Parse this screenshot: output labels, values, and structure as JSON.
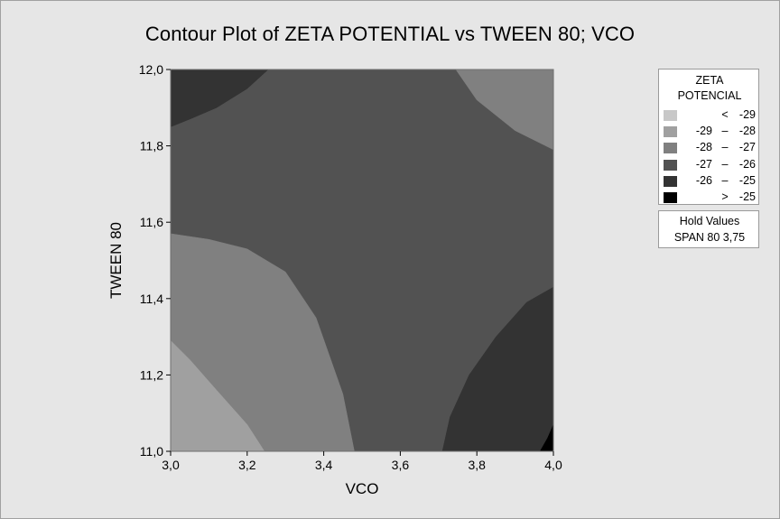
{
  "chart_data": {
    "type": "contour",
    "title": "Contour Plot of ZETA POTENTIAL vs TWEEN 80; VCO",
    "xlabel": "VCO",
    "ylabel": "TWEEN 80",
    "xlim": [
      3.0,
      4.0
    ],
    "ylim": [
      11.0,
      12.0
    ],
    "x_ticks": [
      "3,0",
      "3,2",
      "3,4",
      "3,6",
      "3,8",
      "4,0"
    ],
    "y_ticks": [
      "11,0",
      "11,2",
      "11,4",
      "11,6",
      "11,8",
      "12,0"
    ],
    "legend_title": [
      "ZETA",
      "POTENCIAL"
    ],
    "legend": [
      {
        "lo": "",
        "sep": "<",
        "hi": "-29",
        "color": "#c8c8c8"
      },
      {
        "lo": "-29",
        "sep": "–",
        "hi": "-28",
        "color": "#a0a0a0"
      },
      {
        "lo": "-28",
        "sep": "–",
        "hi": "-27",
        "color": "#808080"
      },
      {
        "lo": "-27",
        "sep": "–",
        "hi": "-26",
        "color": "#525252"
      },
      {
        "lo": "-26",
        "sep": "–",
        "hi": "-25",
        "color": "#333333"
      },
      {
        "lo": "",
        "sep": ">",
        "hi": "-25",
        "color": "#000000"
      }
    ],
    "hold_values": {
      "title": "Hold Values",
      "text": "SPAN 80  3,75"
    },
    "regions": [
      {
        "level": "-27 – -26",
        "color": "#525252",
        "boundary": [
          [
            3.0,
            11.0
          ],
          [
            4.0,
            11.0
          ],
          [
            4.0,
            12.0
          ],
          [
            3.0,
            12.0
          ]
        ]
      },
      {
        "level": "-28 – -27",
        "color": "#808080",
        "boundary": [
          [
            3.0,
            11.0
          ],
          [
            3.48,
            11.0
          ],
          [
            3.45,
            11.15
          ],
          [
            3.38,
            11.35
          ],
          [
            3.3,
            11.47
          ],
          [
            3.2,
            11.53
          ],
          [
            3.1,
            11.555
          ],
          [
            3.0,
            11.57
          ]
        ]
      },
      {
        "level": "-29 – -28",
        "color": "#a0a0a0",
        "boundary": [
          [
            3.0,
            11.0
          ],
          [
            3.245,
            11.0
          ],
          [
            3.2,
            11.07
          ],
          [
            3.12,
            11.16
          ],
          [
            3.05,
            11.24
          ],
          [
            3.0,
            11.29
          ]
        ]
      },
      {
        "level": "-28 – -27",
        "color": "#808080",
        "boundary": [
          [
            4.0,
            12.0
          ],
          [
            3.745,
            12.0
          ],
          [
            3.8,
            11.92
          ],
          [
            3.9,
            11.84
          ],
          [
            4.0,
            11.79
          ]
        ]
      },
      {
        "level": "-26 – -25",
        "color": "#333333",
        "boundary": [
          [
            3.0,
            12.0
          ],
          [
            3.255,
            12.0
          ],
          [
            3.2,
            11.95
          ],
          [
            3.12,
            11.9
          ],
          [
            3.05,
            11.87
          ],
          [
            3.0,
            11.85
          ]
        ]
      },
      {
        "level": "-26 – -25",
        "color": "#333333",
        "boundary": [
          [
            4.0,
            11.0
          ],
          [
            3.71,
            11.0
          ],
          [
            3.73,
            11.09
          ],
          [
            3.78,
            11.2
          ],
          [
            3.85,
            11.3
          ],
          [
            3.93,
            11.39
          ],
          [
            4.0,
            11.43
          ]
        ]
      },
      {
        "level": "> -25",
        "color": "#000000",
        "boundary": [
          [
            4.0,
            11.0
          ],
          [
            3.965,
            11.0
          ],
          [
            3.985,
            11.035
          ],
          [
            4.0,
            11.07
          ]
        ]
      }
    ]
  }
}
